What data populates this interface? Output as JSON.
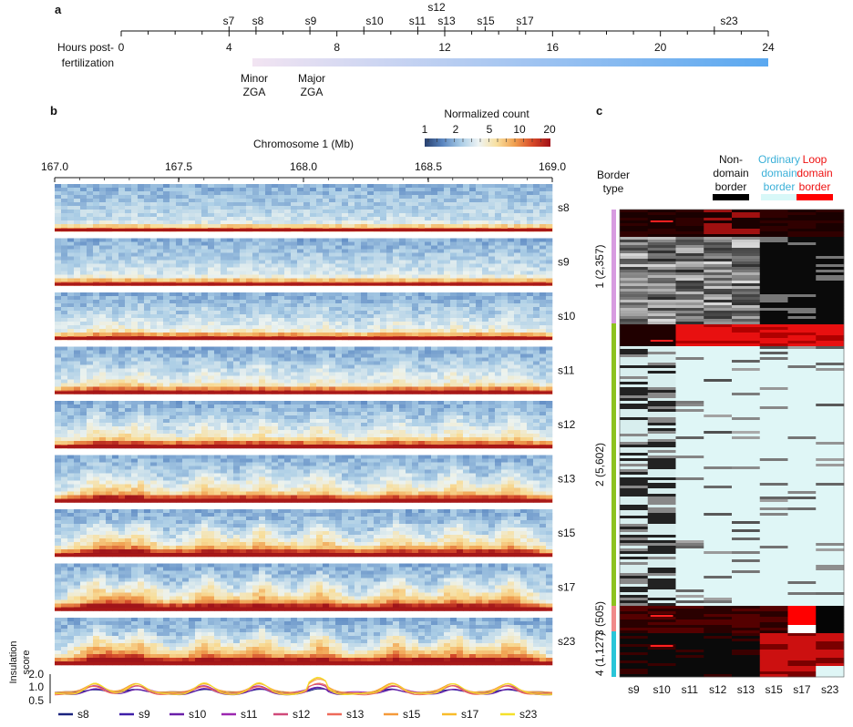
{
  "panel_a": {
    "letter": "a",
    "axis_label": "Hours post-\nfertilization",
    "axis_label_line1": "Hours post-",
    "axis_label_line2": "fertilization",
    "ticks": [
      0,
      4,
      8,
      12,
      16,
      20,
      24
    ],
    "stages": [
      {
        "name": "s7",
        "hour": 4
      },
      {
        "name": "s8",
        "hour": 5
      },
      {
        "name": "s9",
        "hour": 7
      },
      {
        "name": "s10",
        "hour": 9
      },
      {
        "name": "s11",
        "hour": 11
      },
      {
        "name": "s12",
        "hour": 12
      },
      {
        "name": "s13",
        "hour": 12
      },
      {
        "name": "s15",
        "hour": 13.5
      },
      {
        "name": "s17",
        "hour": 14.7
      },
      {
        "name": "s23",
        "hour": 22
      }
    ],
    "minor_zga_line1": "Minor",
    "minor_zga_line2": "ZGA",
    "major_zga_line1": "Major",
    "major_zga_line2": "ZGA"
  },
  "panel_b": {
    "letter": "b",
    "chrom_label": "Chromosome 1 (Mb)",
    "x_ticks": [
      "167.0",
      "167.5",
      "168.0",
      "168.5",
      "169.0"
    ],
    "colorbar_title": "Normalized count",
    "colorbar_ticks": [
      "1",
      "2",
      "5",
      "10",
      "20"
    ],
    "stages": [
      "s8",
      "s9",
      "s10",
      "s11",
      "s12",
      "s13",
      "s15",
      "s17",
      "s23"
    ],
    "insulation_label_line1": "Insulation",
    "insulation_label_line2": "score",
    "insulation_ticks": [
      "2.0",
      "1.0",
      "0.5"
    ],
    "legend": [
      {
        "name": "s8",
        "color": "#1a237e"
      },
      {
        "name": "s9",
        "color": "#3f1fa8"
      },
      {
        "name": "s10",
        "color": "#6a1fa8"
      },
      {
        "name": "s11",
        "color": "#9c27b0"
      },
      {
        "name": "s12",
        "color": "#d04a7a"
      },
      {
        "name": "s13",
        "color": "#ee6a5a"
      },
      {
        "name": "s15",
        "color": "#f59a3a"
      },
      {
        "name": "s17",
        "color": "#f8bc2a"
      },
      {
        "name": "s23",
        "color": "#f5e02a"
      }
    ]
  },
  "panel_c": {
    "letter": "c",
    "border_type_line1": "Border",
    "border_type_line2": "type",
    "legend": [
      {
        "lines": [
          "Non-",
          "domain",
          "border"
        ],
        "color": "#111111",
        "bar": "#000000"
      },
      {
        "lines": [
          "Ordinary",
          "domain",
          "border"
        ],
        "color": "#3bb0d8",
        "bar": "#d8f8f8"
      },
      {
        "lines": [
          "Loop",
          "domain",
          "border"
        ],
        "color": "#ee1111",
        "bar": "#ff0000"
      }
    ],
    "columns": [
      "s9",
      "s10",
      "s11",
      "s12",
      "s13",
      "s15",
      "s17",
      "s23"
    ],
    "groups": [
      {
        "label": "1 (2,357)",
        "color": "#d79be0"
      },
      {
        "label": "2 (5,602)",
        "color": "#8dc21f"
      },
      {
        "label": "3 (505)",
        "color": "#f08a8a"
      },
      {
        "label": "4 (1,127)",
        "color": "#29c5d8"
      }
    ]
  },
  "colors": {
    "zga_gradient_start": "#f2e4f2",
    "zga_gradient_end": "#5aa8f0",
    "hic_cold": "#3a5fa8",
    "hic_hot": "#c01818"
  }
}
